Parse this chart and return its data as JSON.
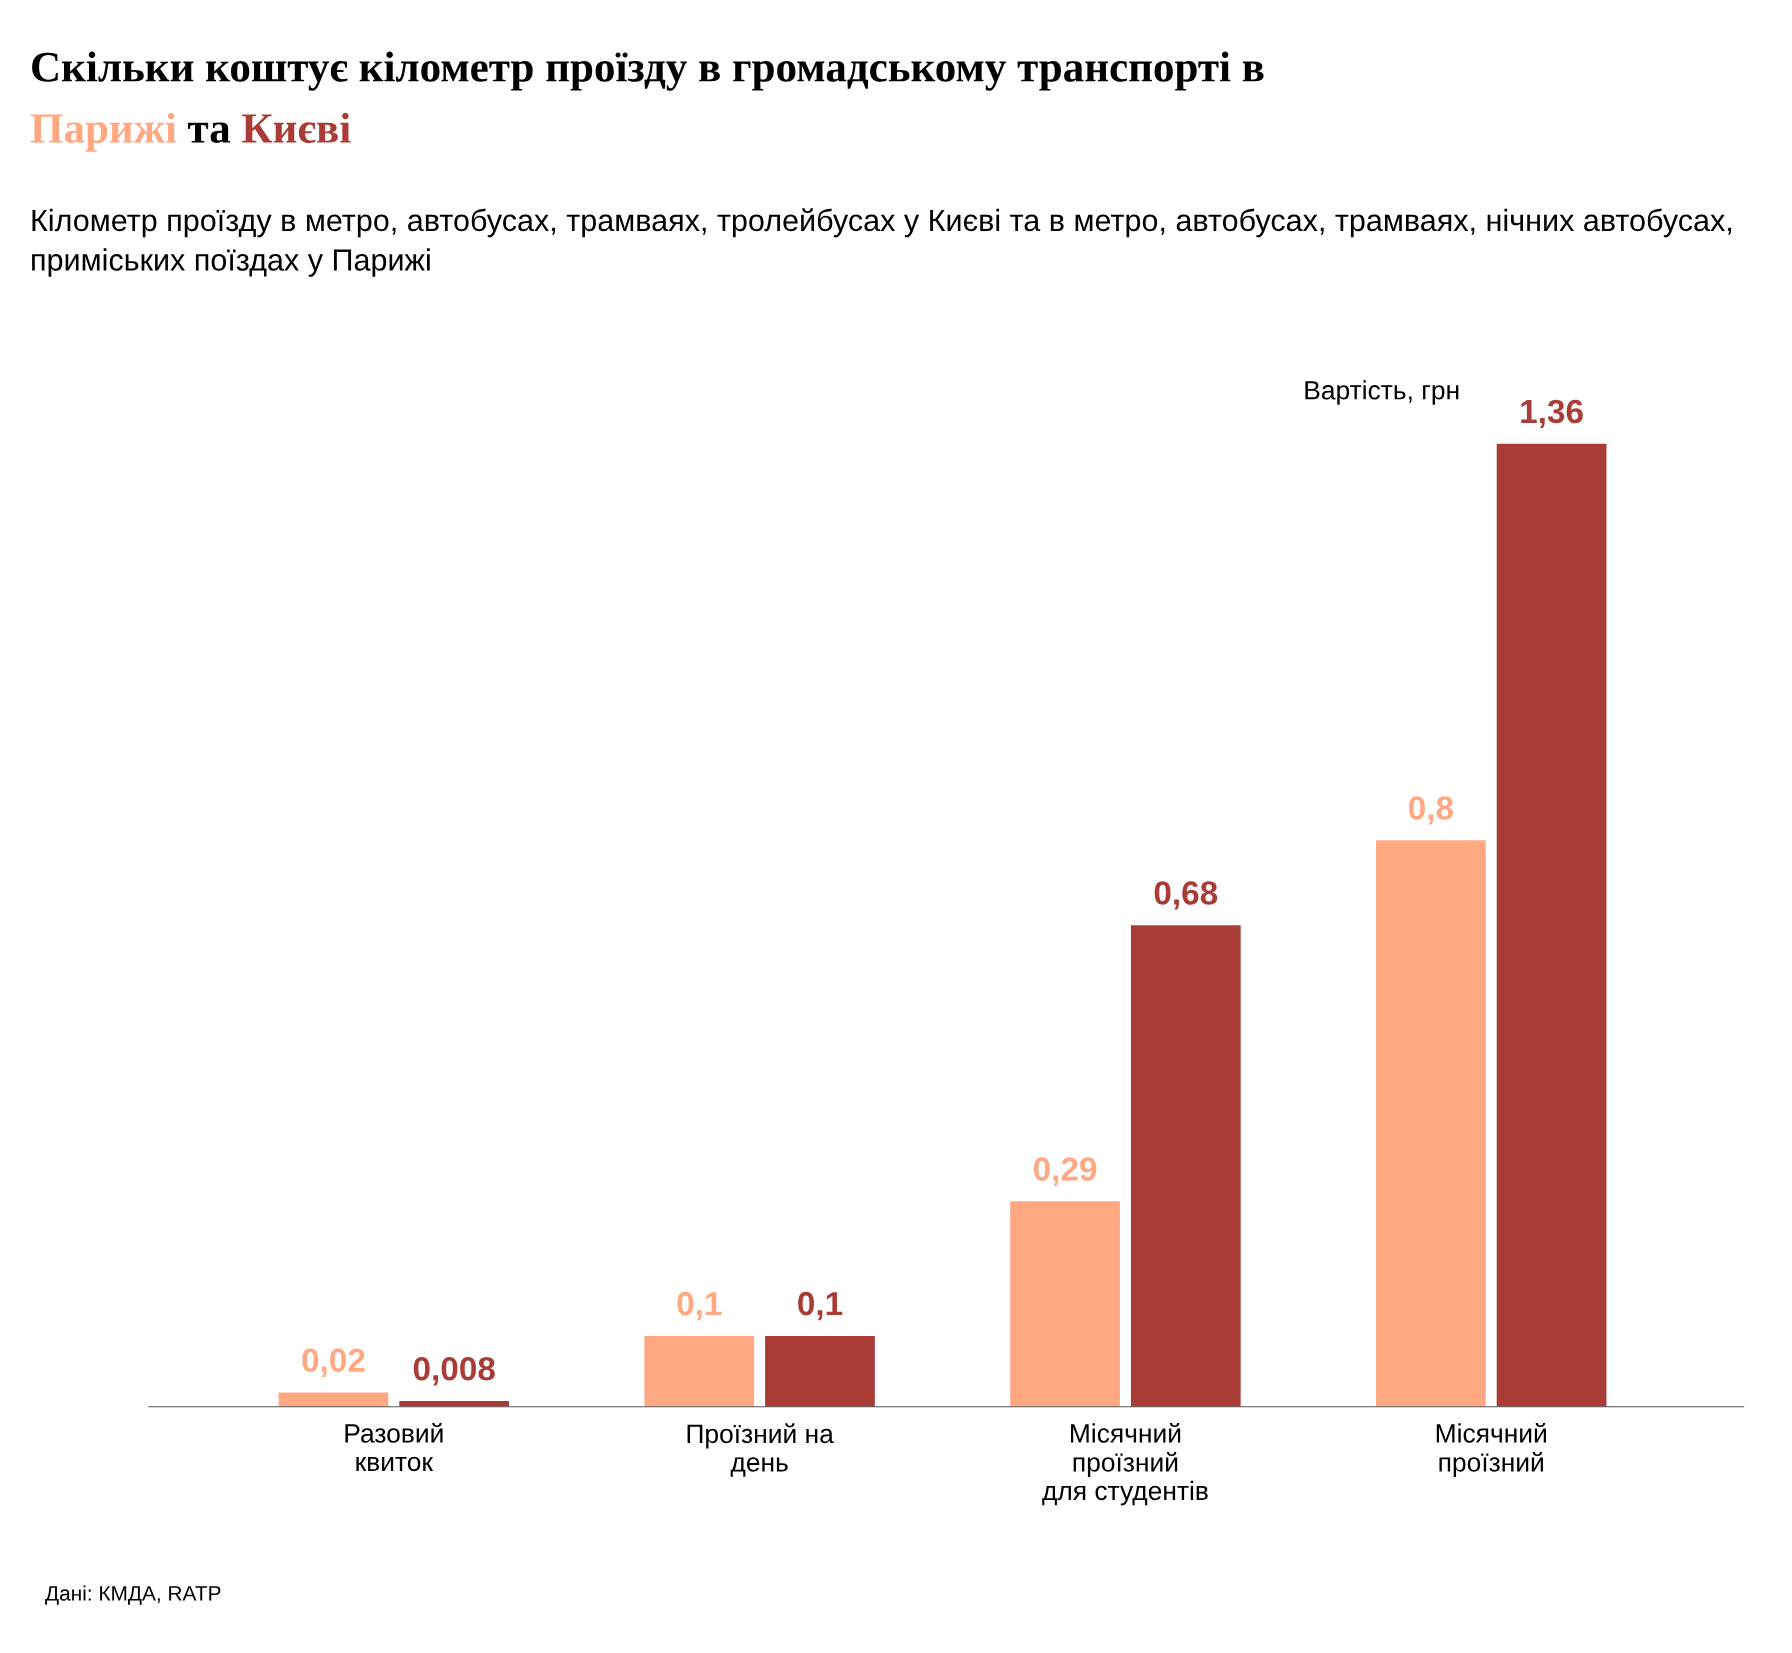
{
  "chart_data": {
    "type": "bar",
    "title": "Скільки коштує кілометр проїзду в громадському транспорті в",
    "subtitle": "Кілометр проїзду в метро, автобусах, трамваях, тролейбусах у Києві та в метро, автобусах, трамваях, нічних автобусах, приміських поїздах у Парижі",
    "ylabel": "Вартість, грн",
    "annotations": [
      "та",
      "Дані: КМДА, RATP"
    ],
    "categories": [
      "Разовий\nквиток",
      "Проїзний на\nдень",
      "Місячний\nпроїзний\nдля студентів",
      "Місячний\nпроїзний"
    ],
    "series": [
      {
        "name": "Парижі",
        "color": "#ffa882",
        "values": [
          0.02,
          0.1,
          0.29,
          0.8
        ],
        "value_labels": [
          "0,02",
          "0,1",
          "0,29",
          "0,8"
        ]
      },
      {
        "name": "Києві",
        "color": "#a93c36",
        "values": [
          0.008,
          0.1,
          0.68,
          1.36
        ],
        "value_labels": [
          "0,008",
          "0,1",
          "0,68",
          "1,36"
        ]
      }
    ],
    "grid": false,
    "legend": false
  }
}
